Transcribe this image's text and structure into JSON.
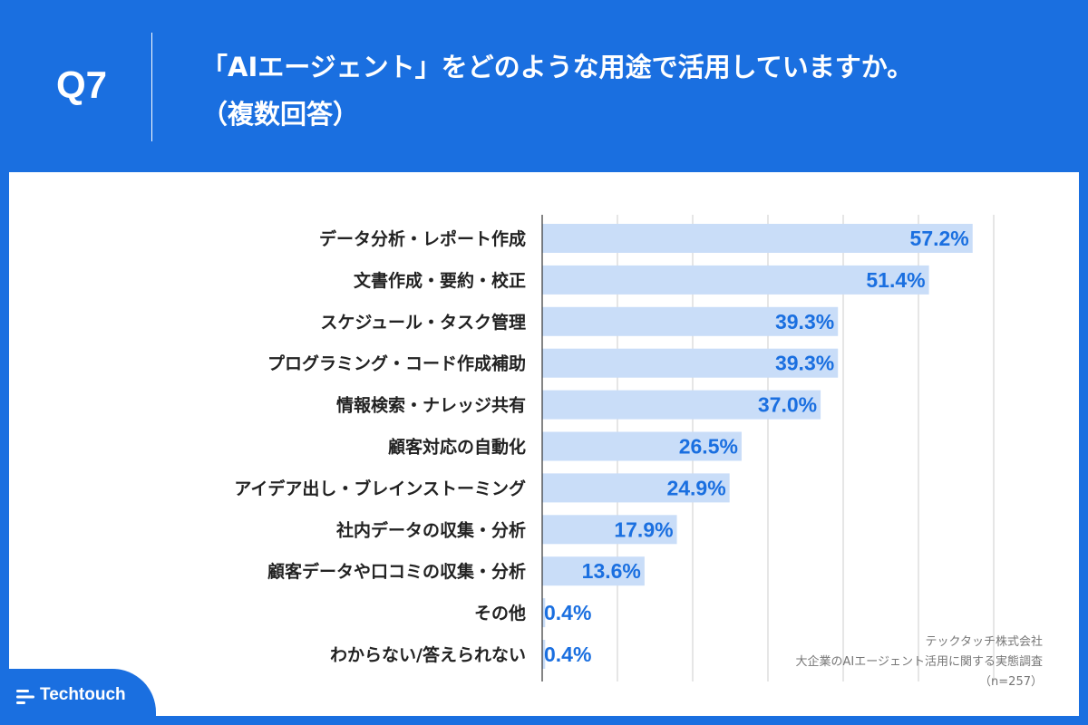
{
  "header": {
    "question_no": "Q7",
    "title_line1": "「AIエージェント」をどのような用途で活用していますか。",
    "title_line2": "（複数回答）"
  },
  "chart_data": {
    "type": "bar",
    "orientation": "horizontal",
    "categories": [
      "データ分析・レポート作成",
      "文書作成・要約・校正",
      "スケジュール・タスク管理",
      "プログラミング・コード作成補助",
      "情報検索・ナレッジ共有",
      "顧客対応の自動化",
      "アイデア出し・ブレインストーミング",
      "社内データの収集・分析",
      "顧客データや口コミの収集・分析",
      "その他",
      "わからない/答えられない"
    ],
    "values": [
      57.2,
      51.4,
      39.3,
      39.3,
      37.0,
      26.5,
      24.9,
      17.9,
      13.6,
      0.4,
      0.4
    ],
    "value_labels": [
      "57.2%",
      "51.4%",
      "39.3%",
      "39.3%",
      "37.0%",
      "26.5%",
      "24.9%",
      "17.9%",
      "13.6%",
      "0.4%",
      "0.4%"
    ],
    "xlim": [
      0,
      60
    ],
    "grid": true,
    "colors": {
      "bar": "#c9ddf8",
      "value_text": "#1a6fe0",
      "accent": "#1a6fe0"
    }
  },
  "source": {
    "company": "テックタッチ株式会社",
    "survey": "大企業のAIエージェント活用に関する実態調査",
    "sample": "（n=257）"
  },
  "logo": {
    "text": "Techtouch",
    "icon": "techtouch-logo-icon"
  }
}
